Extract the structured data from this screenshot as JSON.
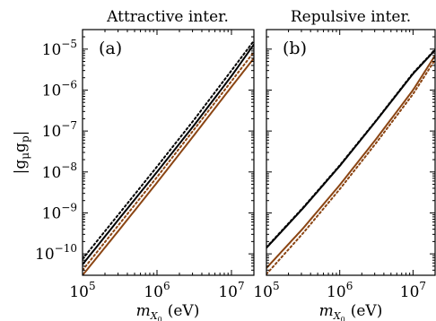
{
  "chart_data": [
    {
      "type": "line",
      "title": "Attractive inter.",
      "panel_label": "(a)",
      "xlabel_main": "m",
      "xlabel_sub": "X",
      "xlabel_subsub": "0",
      "xlabel_unit": "(eV)",
      "ylabel_main": "|g",
      "ylabel_sub1": "μ",
      "ylabel_mid": "g",
      "ylabel_sub2": "p",
      "ylabel_end": "|",
      "xscale": "log",
      "yscale": "log",
      "xlim": [
        100000,
        20000000
      ],
      "ylim": [
        3e-11,
        3e-05
      ],
      "x_ticks": [
        {
          "value": 100000,
          "base": "10",
          "exp": "5"
        },
        {
          "value": 1000000,
          "base": "10",
          "exp": "6"
        },
        {
          "value": 10000000,
          "base": "10",
          "exp": "7"
        }
      ],
      "y_ticks": [
        {
          "value": 1e-10,
          "base": "10",
          "exp": "−10"
        },
        {
          "value": 1e-09,
          "base": "10",
          "exp": "−9"
        },
        {
          "value": 1e-08,
          "base": "10",
          "exp": "−8"
        },
        {
          "value": 1e-07,
          "base": "10",
          "exp": "−7"
        },
        {
          "value": 1e-06,
          "base": "10",
          "exp": "−6"
        },
        {
          "value": 1e-05,
          "base": "10",
          "exp": "−5"
        }
      ],
      "grid": false,
      "series": [
        {
          "color": "#000000",
          "style": "solid",
          "x": [
            100000,
            316000,
            1000000,
            3160000,
            10000000,
            20000000
          ],
          "y": [
            5.5e-11,
            7.5e-10,
            1e-08,
            1.4e-07,
            2.2e-06,
            1.3e-05
          ]
        },
        {
          "color": "#000000",
          "style": "dotted",
          "x": [
            100000,
            316000,
            1000000,
            3160000,
            10000000,
            20000000
          ],
          "y": [
            7.5e-11,
            1e-09,
            1.35e-08,
            1.9e-07,
            3e-06,
            1.6e-05
          ]
        },
        {
          "color": "#8B4513",
          "style": "solid",
          "x": [
            100000,
            316000,
            1000000,
            3160000,
            10000000,
            20000000
          ],
          "y": [
            3e-11,
            4e-10,
            5.5e-09,
            8e-08,
            1.2e-06,
            6e-06
          ]
        },
        {
          "color": "#8B4513",
          "style": "dotted",
          "x": [
            100000,
            316000,
            1000000,
            3160000,
            10000000,
            20000000
          ],
          "y": [
            4e-11,
            5.5e-10,
            7.5e-09,
            1.1e-07,
            1.65e-06,
            8.5e-06
          ]
        }
      ]
    },
    {
      "type": "line",
      "title": "Repulsive inter.",
      "panel_label": "(b)",
      "xlabel_main": "m",
      "xlabel_sub": "X",
      "xlabel_subsub": "0",
      "xlabel_unit": "(eV)",
      "xscale": "log",
      "yscale": "log",
      "xlim": [
        100000,
        20000000
      ],
      "ylim": [
        3e-11,
        3e-05
      ],
      "x_ticks": [
        {
          "value": 100000,
          "base": "10",
          "exp": "5"
        },
        {
          "value": 1000000,
          "base": "10",
          "exp": "6"
        },
        {
          "value": 10000000,
          "base": "10",
          "exp": "7"
        }
      ],
      "grid": false,
      "series": [
        {
          "color": "#000000",
          "style": "solid",
          "x": [
            100000,
            316000,
            1000000,
            3160000,
            10000000,
            20000000
          ],
          "y": [
            1.4e-10,
            1.3e-09,
            1.4e-08,
            1.8e-07,
            2.5e-06,
            9.5e-06
          ]
        },
        {
          "color": "#000000",
          "style": "dotted",
          "x": [
            100000,
            316000,
            1000000,
            3160000,
            10000000,
            20000000
          ],
          "y": [
            1.45e-10,
            1.35e-09,
            1.45e-08,
            1.85e-07,
            2.6e-06,
            9.8e-06
          ]
        },
        {
          "color": "#8B4513",
          "style": "solid",
          "x": [
            100000,
            316000,
            1000000,
            3160000,
            10000000,
            20000000
          ],
          "y": [
            4.5e-11,
            4.2e-10,
            4.8e-09,
            6.5e-08,
            1e-06,
            7e-06
          ]
        },
        {
          "color": "#8B4513",
          "style": "dotted",
          "x": [
            100000,
            316000,
            1000000,
            3160000,
            10000000,
            20000000
          ],
          "y": [
            3.2e-11,
            3.2e-10,
            3.8e-09,
            5.2e-08,
            8e-07,
            5.5e-06
          ]
        }
      ]
    }
  ]
}
